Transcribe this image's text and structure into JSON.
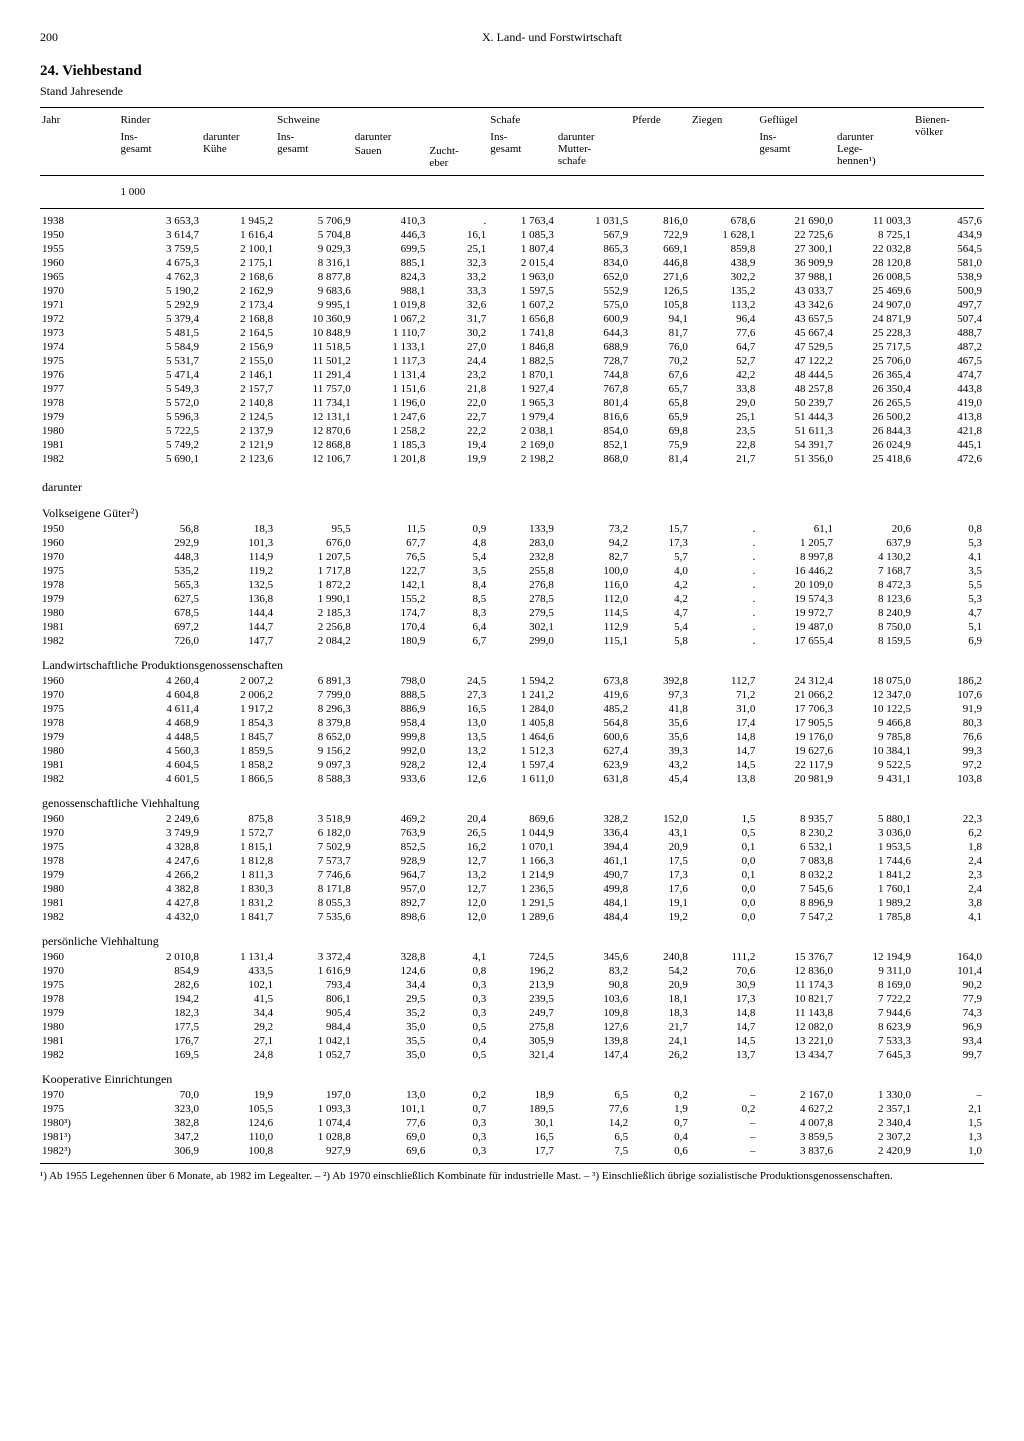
{
  "page": {
    "number": "200",
    "chapter": "X. Land- und Forstwirtschaft"
  },
  "title": "24. Viehbestand",
  "stand": "Stand Jahresende",
  "unit": "1 000",
  "columns": {
    "jahr": "Jahr",
    "rinder": "Rinder",
    "rinder_ins": "Ins-\ngesamt",
    "rinder_kuhe": "darunter\nKühe",
    "schweine": "Schweine",
    "schweine_ins": "Ins-\ngesamt",
    "schweine_dar": "darunter",
    "schweine_sauen": "Sauen",
    "schweine_eber": "Zucht-\neber",
    "schafe": "Schafe",
    "schafe_ins": "Ins-\ngesamt",
    "schafe_mutter": "darunter\nMutter-\nschafe",
    "pferde": "Pferde",
    "ziegen": "Ziegen",
    "gefluegel": "Geflügel",
    "gefl_ins": "Ins-\ngesamt",
    "gefl_lege": "darunter\nLege-\nhennen¹)",
    "bienen": "Bienen-\nvölker"
  },
  "sections": [
    {
      "title": null,
      "rows": [
        [
          "1938",
          "3 653,3",
          "1 945,2",
          "5 706,9",
          "410,3",
          ".",
          "1 763,4",
          "1 031,5",
          "816,0",
          "678,6",
          "21 690,0",
          "11 003,3",
          "457,6"
        ],
        [
          "1950",
          "3 614,7",
          "1 616,4",
          "5 704,8",
          "446,3",
          "16,1",
          "1 085,3",
          "567,9",
          "722,9",
          "1 628,1",
          "22 725,6",
          "8 725,1",
          "434,9"
        ],
        [
          "1955",
          "3 759,5",
          "2 100,1",
          "9 029,3",
          "699,5",
          "25,1",
          "1 807,4",
          "865,3",
          "669,1",
          "859,8",
          "27 300,1",
          "22 032,8",
          "564,5"
        ],
        [
          "1960",
          "4 675,3",
          "2 175,1",
          "8 316,1",
          "885,1",
          "32,3",
          "2 015,4",
          "834,0",
          "446,8",
          "438,9",
          "36 909,9",
          "28 120,8",
          "581,0"
        ],
        [
          "1965",
          "4 762,3",
          "2 168,6",
          "8 877,8",
          "824,3",
          "33,2",
          "1 963,0",
          "652,0",
          "271,6",
          "302,2",
          "37 988,1",
          "26 008,5",
          "538,9"
        ],
        [
          "1970",
          "5 190,2",
          "2 162,9",
          "9 683,6",
          "988,1",
          "33,3",
          "1 597,5",
          "552,9",
          "126,5",
          "135,2",
          "43 033,7",
          "25 469,6",
          "500,9"
        ],
        [
          "1971",
          "5 292,9",
          "2 173,4",
          "9 995,1",
          "1 019,8",
          "32,6",
          "1 607,2",
          "575,0",
          "105,8",
          "113,2",
          "43 342,6",
          "24 907,0",
          "497,7"
        ],
        [
          "1972",
          "5 379,4",
          "2 168,8",
          "10 360,9",
          "1 067,2",
          "31,7",
          "1 656,8",
          "600,9",
          "94,1",
          "96,4",
          "43 657,5",
          "24 871,9",
          "507,4"
        ],
        [
          "1973",
          "5 481,5",
          "2 164,5",
          "10 848,9",
          "1 110,7",
          "30,2",
          "1 741,8",
          "644,3",
          "81,7",
          "77,6",
          "45 667,4",
          "25 228,3",
          "488,7"
        ],
        [
          "1974",
          "5 584,9",
          "2 156,9",
          "11 518,5",
          "1 133,1",
          "27,0",
          "1 846,8",
          "688,9",
          "76,0",
          "64,7",
          "47 529,5",
          "25 717,5",
          "487,2"
        ],
        [
          "1975",
          "5 531,7",
          "2 155,0",
          "11 501,2",
          "1 117,3",
          "24,4",
          "1 882,5",
          "728,7",
          "70,2",
          "52,7",
          "47 122,2",
          "25 706,0",
          "467,5"
        ],
        [
          "1976",
          "5 471,4",
          "2 146,1",
          "11 291,4",
          "1 131,4",
          "23,2",
          "1 870,1",
          "744,8",
          "67,6",
          "42,2",
          "48 444,5",
          "26 365,4",
          "474,7"
        ],
        [
          "1977",
          "5 549,3",
          "2 157,7",
          "11 757,0",
          "1 151,6",
          "21,8",
          "1 927,4",
          "767,8",
          "65,7",
          "33,8",
          "48 257,8",
          "26 350,4",
          "443,8"
        ],
        [
          "1978",
          "5 572,0",
          "2 140,8",
          "11 734,1",
          "1 196,0",
          "22,0",
          "1 965,3",
          "801,4",
          "65,8",
          "29,0",
          "50 239,7",
          "26 265,5",
          "419,0"
        ],
        [
          "1979",
          "5 596,3",
          "2 124,5",
          "12 131,1",
          "1 247,6",
          "22,7",
          "1 979,4",
          "816,6",
          "65,9",
          "25,1",
          "51 444,3",
          "26 500,2",
          "413,8"
        ],
        [
          "1980",
          "5 722,5",
          "2 137,9",
          "12 870,6",
          "1 258,2",
          "22,2",
          "2 038,1",
          "854,0",
          "69,8",
          "23,5",
          "51 611,3",
          "26 844,3",
          "421,8"
        ],
        [
          "1981",
          "5 749,2",
          "2 121,9",
          "12 868,8",
          "1 185,3",
          "19,4",
          "2 169,0",
          "852,1",
          "75,9",
          "22,8",
          "54 391,7",
          "26 024,9",
          "445,1"
        ],
        [
          "1982",
          "5 690,1",
          "2 123,6",
          "12 106,7",
          "1 201,8",
          "19,9",
          "2 198,2",
          "868,0",
          "81,4",
          "21,7",
          "51 356,0",
          "25 418,6",
          "472,6"
        ]
      ]
    },
    {
      "title": "darunter",
      "rows": []
    },
    {
      "title": "Volkseigene Güter²)",
      "rows": [
        [
          "1950",
          "56,8",
          "18,3",
          "95,5",
          "11,5",
          "0,9",
          "133,9",
          "73,2",
          "15,7",
          ".",
          "61,1",
          "20,6",
          "0,8"
        ],
        [
          "1960",
          "292,9",
          "101,3",
          "676,0",
          "67,7",
          "4,8",
          "283,0",
          "94,2",
          "17,3",
          ".",
          "1 205,7",
          "637,9",
          "5,3"
        ],
        [
          "1970",
          "448,3",
          "114,9",
          "1 207,5",
          "76,5",
          "5,4",
          "232,8",
          "82,7",
          "5,7",
          ".",
          "8 997,8",
          "4 130,2",
          "4,1"
        ],
        [
          "1975",
          "535,2",
          "119,2",
          "1 717,8",
          "122,7",
          "3,5",
          "255,8",
          "100,0",
          "4,0",
          ".",
          "16 446,2",
          "7 168,7",
          "3,5"
        ],
        [
          "1978",
          "565,3",
          "132,5",
          "1 872,2",
          "142,1",
          "8,4",
          "276,8",
          "116,0",
          "4,2",
          ".",
          "20 109,0",
          "8 472,3",
          "5,5"
        ],
        [
          "1979",
          "627,5",
          "136,8",
          "1 990,1",
          "155,2",
          "8,5",
          "278,5",
          "112,0",
          "4,2",
          ".",
          "19 574,3",
          "8 123,6",
          "5,3"
        ],
        [
          "1980",
          "678,5",
          "144,4",
          "2 185,3",
          "174,7",
          "8,3",
          "279,5",
          "114,5",
          "4,7",
          ".",
          "19 972,7",
          "8 240,9",
          "4,7"
        ],
        [
          "1981",
          "697,2",
          "144,7",
          "2 256,8",
          "170,4",
          "6,4",
          "302,1",
          "112,9",
          "5,4",
          ".",
          "19 487,0",
          "8 750,0",
          "5,1"
        ],
        [
          "1982",
          "726,0",
          "147,7",
          "2 084,2",
          "180,9",
          "6,7",
          "299,0",
          "115,1",
          "5,8",
          ".",
          "17 655,4",
          "8 159,5",
          "6,9"
        ]
      ]
    },
    {
      "title": "Landwirtschaftliche Produktionsgenossenschaften",
      "rows": [
        [
          "1960",
          "4 260,4",
          "2 007,2",
          "6 891,3",
          "798,0",
          "24,5",
          "1 594,2",
          "673,8",
          "392,8",
          "112,7",
          "24 312,4",
          "18 075,0",
          "186,2"
        ],
        [
          "1970",
          "4 604,8",
          "2 006,2",
          "7 799,0",
          "888,5",
          "27,3",
          "1 241,2",
          "419,6",
          "97,3",
          "71,2",
          "21 066,2",
          "12 347,0",
          "107,6"
        ],
        [
          "1975",
          "4 611,4",
          "1 917,2",
          "8 296,3",
          "886,9",
          "16,5",
          "1 284,0",
          "485,2",
          "41,8",
          "31,0",
          "17 706,3",
          "10 122,5",
          "91,9"
        ],
        [
          "1978",
          "4 468,9",
          "1 854,3",
          "8 379,8",
          "958,4",
          "13,0",
          "1 405,8",
          "564,8",
          "35,6",
          "17,4",
          "17 905,5",
          "9 466,8",
          "80,3"
        ],
        [
          "1979",
          "4 448,5",
          "1 845,7",
          "8 652,0",
          "999,8",
          "13,5",
          "1 464,6",
          "600,6",
          "35,6",
          "14,8",
          "19 176,0",
          "9 785,8",
          "76,6"
        ],
        [
          "1980",
          "4 560,3",
          "1 859,5",
          "9 156,2",
          "992,0",
          "13,2",
          "1 512,3",
          "627,4",
          "39,3",
          "14,7",
          "19 627,6",
          "10 384,1",
          "99,3"
        ],
        [
          "1981",
          "4 604,5",
          "1 858,2",
          "9 097,3",
          "928,2",
          "12,4",
          "1 597,4",
          "623,9",
          "43,2",
          "14,5",
          "22 117,9",
          "9 522,5",
          "97,2"
        ],
        [
          "1982",
          "4 601,5",
          "1 866,5",
          "8 588,3",
          "933,6",
          "12,6",
          "1 611,0",
          "631,8",
          "45,4",
          "13,8",
          "20 981,9",
          "9 431,1",
          "103,8"
        ]
      ]
    },
    {
      "title": "genossenschaftliche Viehhaltung",
      "rows": [
        [
          "1960",
          "2 249,6",
          "875,8",
          "3 518,9",
          "469,2",
          "20,4",
          "869,6",
          "328,2",
          "152,0",
          "1,5",
          "8 935,7",
          "5 880,1",
          "22,3"
        ],
        [
          "1970",
          "3 749,9",
          "1 572,7",
          "6 182,0",
          "763,9",
          "26,5",
          "1 044,9",
          "336,4",
          "43,1",
          "0,5",
          "8 230,2",
          "3 036,0",
          "6,2"
        ],
        [
          "1975",
          "4 328,8",
          "1 815,1",
          "7 502,9",
          "852,5",
          "16,2",
          "1 070,1",
          "394,4",
          "20,9",
          "0,1",
          "6 532,1",
          "1 953,5",
          "1,8"
        ],
        [
          "1978",
          "4 247,6",
          "1 812,8",
          "7 573,7",
          "928,9",
          "12,7",
          "1 166,3",
          "461,1",
          "17,5",
          "0,0",
          "7 083,8",
          "1 744,6",
          "2,4"
        ],
        [
          "1979",
          "4 266,2",
          "1 811,3",
          "7 746,6",
          "964,7",
          "13,2",
          "1 214,9",
          "490,7",
          "17,3",
          "0,1",
          "8 032,2",
          "1 841,2",
          "2,3"
        ],
        [
          "1980",
          "4 382,8",
          "1 830,3",
          "8 171,8",
          "957,0",
          "12,7",
          "1 236,5",
          "499,8",
          "17,6",
          "0,0",
          "7 545,6",
          "1 760,1",
          "2,4"
        ],
        [
          "1981",
          "4 427,8",
          "1 831,2",
          "8 055,3",
          "892,7",
          "12,0",
          "1 291,5",
          "484,1",
          "19,1",
          "0,0",
          "8 896,9",
          "1 989,2",
          "3,8"
        ],
        [
          "1982",
          "4 432,0",
          "1 841,7",
          "7 535,6",
          "898,6",
          "12,0",
          "1 289,6",
          "484,4",
          "19,2",
          "0,0",
          "7 547,2",
          "1 785,8",
          "4,1"
        ]
      ]
    },
    {
      "title": "persönliche Viehhaltung",
      "rows": [
        [
          "1960",
          "2 010,8",
          "1 131,4",
          "3 372,4",
          "328,8",
          "4,1",
          "724,5",
          "345,6",
          "240,8",
          "111,2",
          "15 376,7",
          "12 194,9",
          "164,0"
        ],
        [
          "1970",
          "854,9",
          "433,5",
          "1 616,9",
          "124,6",
          "0,8",
          "196,2",
          "83,2",
          "54,2",
          "70,6",
          "12 836,0",
          "9 311,0",
          "101,4"
        ],
        [
          "1975",
          "282,6",
          "102,1",
          "793,4",
          "34,4",
          "0,3",
          "213,9",
          "90,8",
          "20,9",
          "30,9",
          "11 174,3",
          "8 169,0",
          "90,2"
        ],
        [
          "1978",
          "194,2",
          "41,5",
          "806,1",
          "29,5",
          "0,3",
          "239,5",
          "103,6",
          "18,1",
          "17,3",
          "10 821,7",
          "7 722,2",
          "77,9"
        ],
        [
          "1979",
          "182,3",
          "34,4",
          "905,4",
          "35,2",
          "0,3",
          "249,7",
          "109,8",
          "18,3",
          "14,8",
          "11 143,8",
          "7 944,6",
          "74,3"
        ],
        [
          "1980",
          "177,5",
          "29,2",
          "984,4",
          "35,0",
          "0,5",
          "275,8",
          "127,6",
          "21,7",
          "14,7",
          "12 082,0",
          "8 623,9",
          "96,9"
        ],
        [
          "1981",
          "176,7",
          "27,1",
          "1 042,1",
          "35,5",
          "0,4",
          "305,9",
          "139,8",
          "24,1",
          "14,5",
          "13 221,0",
          "7 533,3",
          "93,4"
        ],
        [
          "1982",
          "169,5",
          "24,8",
          "1 052,7",
          "35,0",
          "0,5",
          "321,4",
          "147,4",
          "26,2",
          "13,7",
          "13 434,7",
          "7 645,3",
          "99,7"
        ]
      ]
    },
    {
      "title": "Kooperative Einrichtungen",
      "rows": [
        [
          "1970",
          "70,0",
          "19,9",
          "197,0",
          "13,0",
          "0,2",
          "18,9",
          "6,5",
          "0,2",
          "–",
          "2 167,0",
          "1 330,0",
          "–"
        ],
        [
          "1975",
          "323,0",
          "105,5",
          "1 093,3",
          "101,1",
          "0,7",
          "189,5",
          "77,6",
          "1,9",
          "0,2",
          "4 627,2",
          "2 357,1",
          "2,1"
        ],
        [
          "1980³)",
          "382,8",
          "124,6",
          "1 074,4",
          "77,6",
          "0,3",
          "30,1",
          "14,2",
          "0,7",
          "–",
          "4 007,8",
          "2 340,4",
          "1,5"
        ],
        [
          "1981³)",
          "347,2",
          "110,0",
          "1 028,8",
          "69,0",
          "0,3",
          "16,5",
          "6,5",
          "0,4",
          "–",
          "3 859,5",
          "2 307,2",
          "1,3"
        ],
        [
          "1982³)",
          "306,9",
          "100,8",
          "927,9",
          "69,6",
          "0,3",
          "17,7",
          "7,5",
          "0,6",
          "–",
          "3 837,6",
          "2 420,9",
          "1,0"
        ]
      ]
    }
  ],
  "footnotes": "¹) Ab 1955 Legehennen über 6 Monate, ab 1982 im Legealter. – ²) Ab 1970 einschließlich Kombinate für industrielle Mast. – ³) Einschließlich übrige sozialistische Produktionsgenossenschaften."
}
